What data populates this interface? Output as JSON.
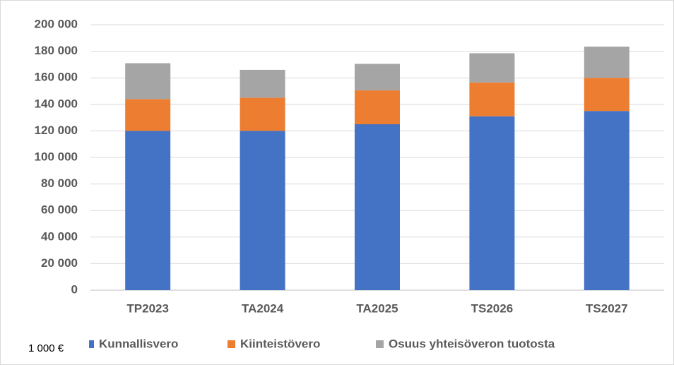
{
  "chart_data": {
    "type": "stacked_bar",
    "categories": [
      "TP2023",
      "TA2024",
      "TA2025",
      "TS2026",
      "TS2027"
    ],
    "series": [
      {
        "name": "Kunnallisvero",
        "color": "#4472c4",
        "values": [
          120000,
          120000,
          125000,
          131000,
          135000
        ]
      },
      {
        "name": "Kiinteistövero",
        "color": "#ed7d31",
        "values": [
          24000,
          25000,
          25500,
          25500,
          25000
        ]
      },
      {
        "name": "Osuus yhteisöveron tuotosta",
        "color": "#a5a5a5",
        "values": [
          27000,
          21000,
          20000,
          22000,
          23500
        ]
      }
    ],
    "ylim": [
      0,
      200000
    ],
    "yticks": [
      0,
      {
        "value": 20000,
        "label": "20 000"
      },
      {
        "value": 40000,
        "label": "40 000"
      },
      {
        "value": 60000,
        "label": "60 000"
      },
      {
        "value": 80000,
        "label": "80 000"
      },
      {
        "value": 100000,
        "label": "100 000"
      },
      {
        "value": 120000,
        "label": "120 000"
      },
      {
        "value": 140000,
        "label": "140 000"
      },
      {
        "value": 160000,
        "label": "160 000"
      },
      {
        "value": 180000,
        "label": "180 000"
      },
      {
        "value": 200000,
        "label": "200 000"
      }
    ],
    "grid": true,
    "legend": "bottom",
    "unit_note": "1 000 €"
  }
}
